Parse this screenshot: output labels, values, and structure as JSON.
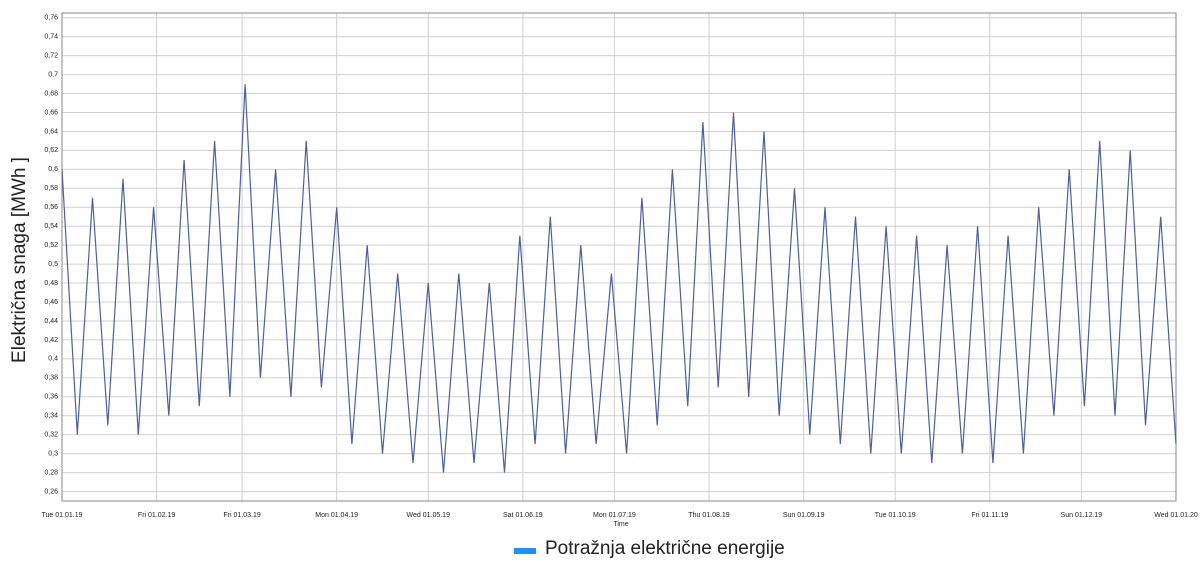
{
  "chart_data": {
    "type": "line",
    "y_label": "Električna snaga [MWh ]",
    "x_label": "Time",
    "series": [
      {
        "name": "Potražnja električne energije",
        "color": "#4a5fa8",
        "legend_color": "#1e8fff",
        "x": [
          0,
          5,
          10,
          15,
          20,
          25,
          30,
          35,
          40,
          45,
          50,
          55,
          60,
          65,
          70,
          75,
          80,
          85,
          90,
          95,
          100,
          105,
          110,
          115,
          120,
          125,
          130,
          135,
          140,
          145,
          150,
          155,
          160,
          165,
          170,
          175,
          180,
          185,
          190,
          195,
          200,
          205,
          210,
          215,
          220,
          225,
          230,
          235,
          240,
          245,
          250,
          255,
          260,
          265,
          270,
          275,
          280,
          285,
          290,
          295,
          300,
          305,
          310,
          315,
          320,
          325,
          330,
          335,
          340,
          345,
          350,
          355,
          360,
          365
        ],
        "values": [
          0.6,
          0.32,
          0.57,
          0.33,
          0.59,
          0.32,
          0.56,
          0.34,
          0.61,
          0.35,
          0.63,
          0.36,
          0.69,
          0.38,
          0.6,
          0.36,
          0.63,
          0.37,
          0.56,
          0.31,
          0.52,
          0.3,
          0.49,
          0.29,
          0.48,
          0.28,
          0.49,
          0.29,
          0.48,
          0.28,
          0.53,
          0.31,
          0.55,
          0.3,
          0.52,
          0.31,
          0.49,
          0.3,
          0.57,
          0.33,
          0.6,
          0.35,
          0.65,
          0.37,
          0.66,
          0.36,
          0.64,
          0.34,
          0.58,
          0.32,
          0.56,
          0.31,
          0.55,
          0.3,
          0.54,
          0.3,
          0.53,
          0.29,
          0.52,
          0.3,
          0.54,
          0.29,
          0.53,
          0.3,
          0.56,
          0.34,
          0.6,
          0.35,
          0.63,
          0.34,
          0.62,
          0.33,
          0.55,
          0.31
        ]
      }
    ],
    "xlim": [
      0,
      365
    ],
    "xticks": [
      {
        "value": 0,
        "label": "Tue 01.01.19"
      },
      {
        "value": 31,
        "label": "Fri 01.02.19"
      },
      {
        "value": 59,
        "label": "Fri 01.03.19"
      },
      {
        "value": 90,
        "label": "Mon 01.04.19"
      },
      {
        "value": 120,
        "label": "Wed 01.05.19"
      },
      {
        "value": 151,
        "label": "Sat 01.06.19"
      },
      {
        "value": 181,
        "label": "Mon 01.07.19"
      },
      {
        "value": 212,
        "label": "Thu 01.08.19"
      },
      {
        "value": 243,
        "label": "Sun 01.09.19"
      },
      {
        "value": 273,
        "label": "Tue 01.10.19"
      },
      {
        "value": 304,
        "label": "Fri 01.11.19"
      },
      {
        "value": 334,
        "label": "Sun 01.12.19"
      },
      {
        "value": 365,
        "label": "Wed 01.01.20"
      }
    ],
    "ylim": [
      0.25,
      0.765
    ],
    "yticks": [
      {
        "value": 0.26,
        "label": "0,26"
      },
      {
        "value": 0.28,
        "label": "0,28"
      },
      {
        "value": 0.3,
        "label": "0,3"
      },
      {
        "value": 0.32,
        "label": "0,32"
      },
      {
        "value": 0.34,
        "label": "0,34"
      },
      {
        "value": 0.36,
        "label": "0,36"
      },
      {
        "value": 0.38,
        "label": "0,38"
      },
      {
        "value": 0.4,
        "label": "0,4"
      },
      {
        "value": 0.42,
        "label": "0,42"
      },
      {
        "value": 0.44,
        "label": "0,44"
      },
      {
        "value": 0.46,
        "label": "0,46"
      },
      {
        "value": 0.48,
        "label": "0,48"
      },
      {
        "value": 0.5,
        "label": "0,5"
      },
      {
        "value": 0.52,
        "label": "0,52"
      },
      {
        "value": 0.54,
        "label": "0,54"
      },
      {
        "value": 0.56,
        "label": "0,56"
      },
      {
        "value": 0.58,
        "label": "0,58"
      },
      {
        "value": 0.6,
        "label": "0,6"
      },
      {
        "value": 0.62,
        "label": "0,62"
      },
      {
        "value": 0.64,
        "label": "0,64"
      },
      {
        "value": 0.66,
        "label": "0,66"
      },
      {
        "value": 0.68,
        "label": "0,68"
      },
      {
        "value": 0.7,
        "label": "0,7"
      },
      {
        "value": 0.72,
        "label": "0,72"
      },
      {
        "value": 0.74,
        "label": "0,74"
      },
      {
        "value": 0.76,
        "label": "0,76"
      }
    ],
    "grid": true
  }
}
